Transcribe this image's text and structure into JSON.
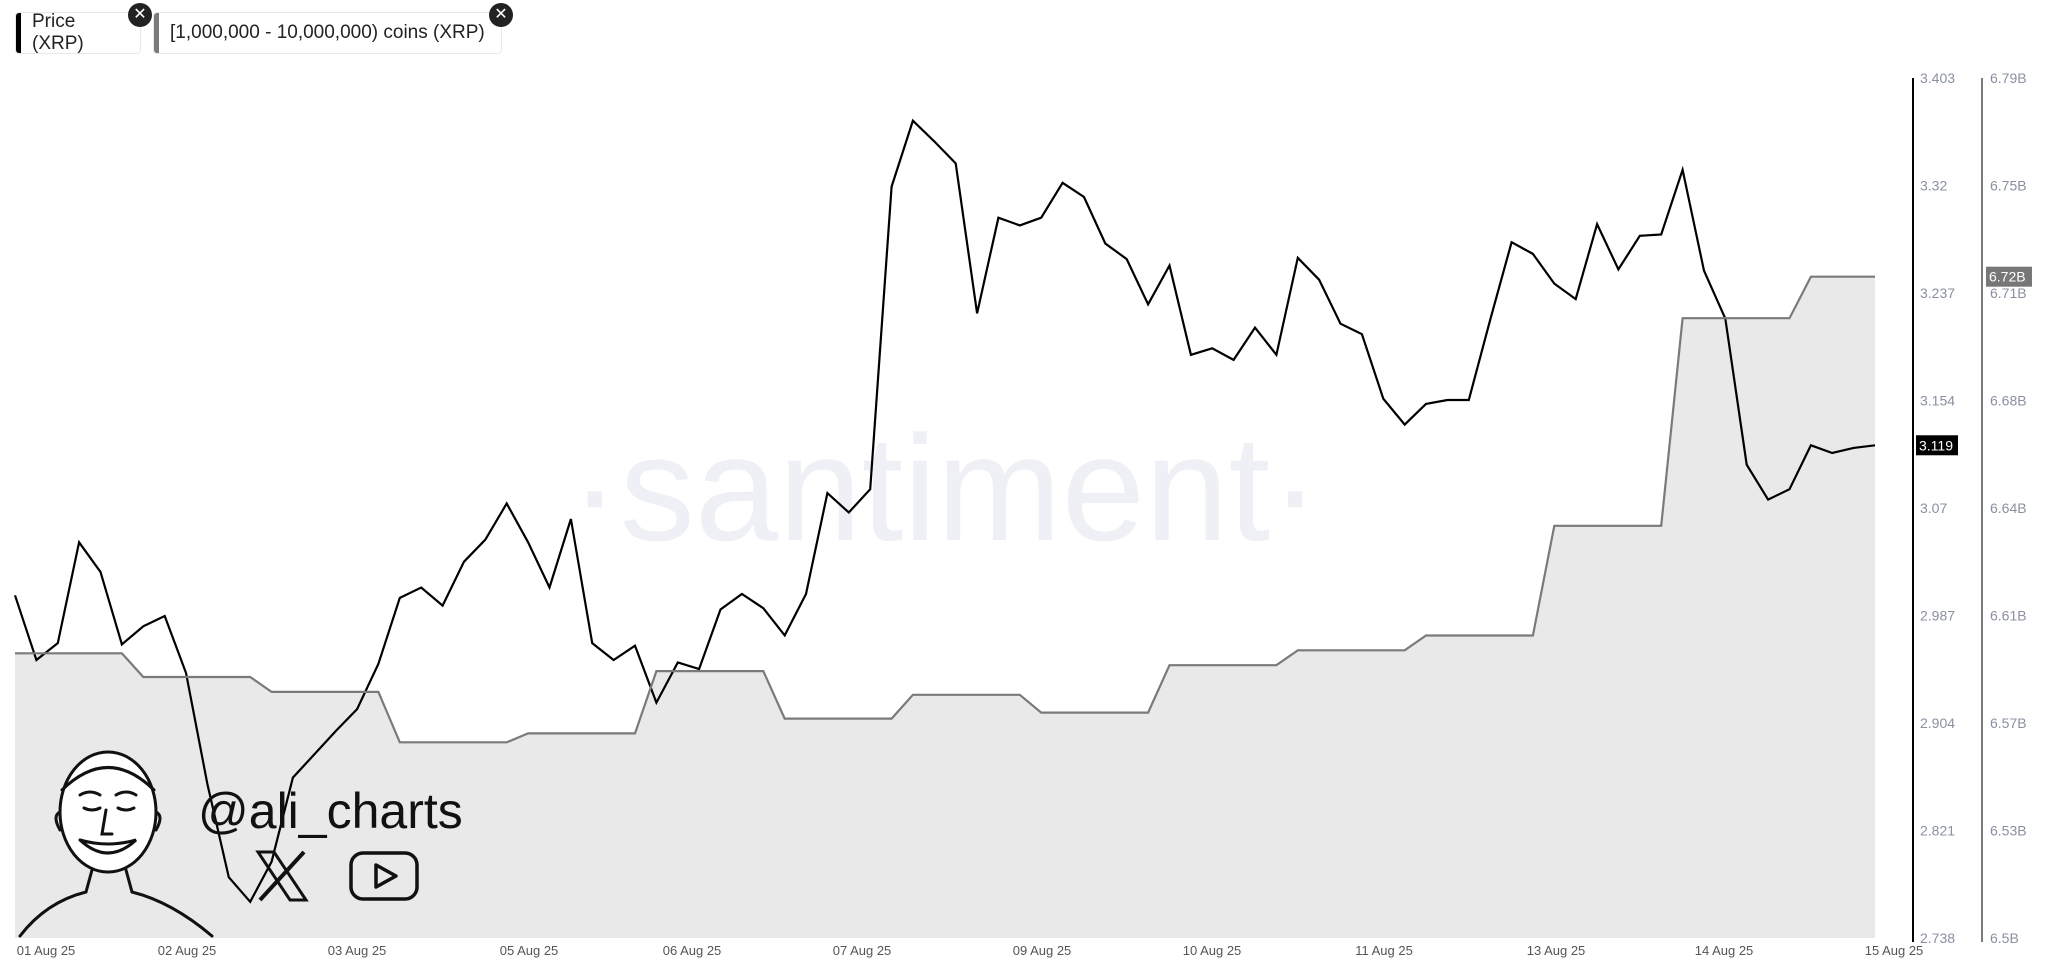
{
  "legend": [
    {
      "label": "Price (XRP)",
      "color": "#000000"
    },
    {
      "label": "[1,000,000 - 10,000,000) coins (XRP)",
      "color": "#7a7a7a"
    }
  ],
  "watermark": "·santiment·",
  "branding": {
    "handle": "@ali_charts",
    "icons": [
      "x-logo-icon",
      "youtube-icon"
    ]
  },
  "chart_data": {
    "type": "line",
    "x_tick_labels": [
      "01 Aug 25",
      "02 Aug 25",
      "03 Aug 25",
      "05 Aug 25",
      "06 Aug 25",
      "07 Aug 25",
      "09 Aug 25",
      "10 Aug 25",
      "11 Aug 25",
      "13 Aug 25",
      "14 Aug 25",
      "15 Aug 25"
    ],
    "y_left": {
      "ticks": [
        "3.403",
        "3.32",
        "3.237",
        "3.154",
        "3.07",
        "2.987",
        "2.904",
        "2.821",
        "2.738"
      ],
      "range": [
        2.738,
        3.403
      ]
    },
    "y_right": {
      "ticks": [
        "6.79B",
        "6.75B",
        "6.71B",
        "6.68B",
        "6.64B",
        "6.61B",
        "6.57B",
        "6.53B",
        "6.5B"
      ],
      "range": [
        6.5,
        6.79
      ],
      "unit": "B"
    },
    "grid": false,
    "legend_position": "top-left",
    "series": [
      {
        "name": "Price (XRP)",
        "axis": "left",
        "color": "#000000",
        "last_label": "3.119",
        "values": [
          3.003,
          2.953,
          2.966,
          3.044,
          3.021,
          2.965,
          2.979,
          2.987,
          2.943,
          2.857,
          2.785,
          2.766,
          2.797,
          2.862,
          2.88,
          2.898,
          2.915,
          2.95,
          3.001,
          3.009,
          2.995,
          3.029,
          3.046,
          3.074,
          3.044,
          3.009,
          3.062,
          2.966,
          2.953,
          2.964,
          2.92,
          2.951,
          2.946,
          2.992,
          3.004,
          2.993,
          2.972,
          3.004,
          3.082,
          3.067,
          3.085,
          3.319,
          3.37,
          3.354,
          3.337,
          3.221,
          3.295,
          3.289,
          3.295,
          3.322,
          3.311,
          3.275,
          3.263,
          3.228,
          3.258,
          3.189,
          3.194,
          3.185,
          3.21,
          3.189,
          3.264,
          3.247,
          3.213,
          3.205,
          3.155,
          3.135,
          3.151,
          3.154,
          3.154,
          3.216,
          3.276,
          3.267,
          3.244,
          3.232,
          3.29,
          3.255,
          3.281,
          3.282,
          3.332,
          3.254,
          3.217,
          3.104,
          3.077,
          3.085,
          3.119,
          3.113,
          3.117,
          3.119
        ]
      },
      {
        "name": "[1,000,000 - 10,000,000) coins (XRP)",
        "axis": "right",
        "color": "#7a7a7a",
        "fill": "#e9e9e9",
        "last_label": "6.72B",
        "values": [
          6.596,
          6.596,
          6.596,
          6.596,
          6.596,
          6.596,
          6.588,
          6.588,
          6.588,
          6.588,
          6.588,
          6.588,
          6.583,
          6.583,
          6.583,
          6.583,
          6.583,
          6.583,
          6.566,
          6.566,
          6.566,
          6.566,
          6.566,
          6.566,
          6.569,
          6.569,
          6.569,
          6.569,
          6.569,
          6.569,
          6.59,
          6.59,
          6.59,
          6.59,
          6.59,
          6.59,
          6.574,
          6.574,
          6.574,
          6.574,
          6.574,
          6.574,
          6.582,
          6.582,
          6.582,
          6.582,
          6.582,
          6.582,
          6.576,
          6.576,
          6.576,
          6.576,
          6.576,
          6.576,
          6.592,
          6.592,
          6.592,
          6.592,
          6.592,
          6.592,
          6.597,
          6.597,
          6.597,
          6.597,
          6.597,
          6.597,
          6.602,
          6.602,
          6.602,
          6.602,
          6.602,
          6.602,
          6.639,
          6.639,
          6.639,
          6.639,
          6.639,
          6.639,
          6.709,
          6.709,
          6.709,
          6.709,
          6.709,
          6.709,
          6.723,
          6.723,
          6.723,
          6.723
        ]
      }
    ]
  }
}
